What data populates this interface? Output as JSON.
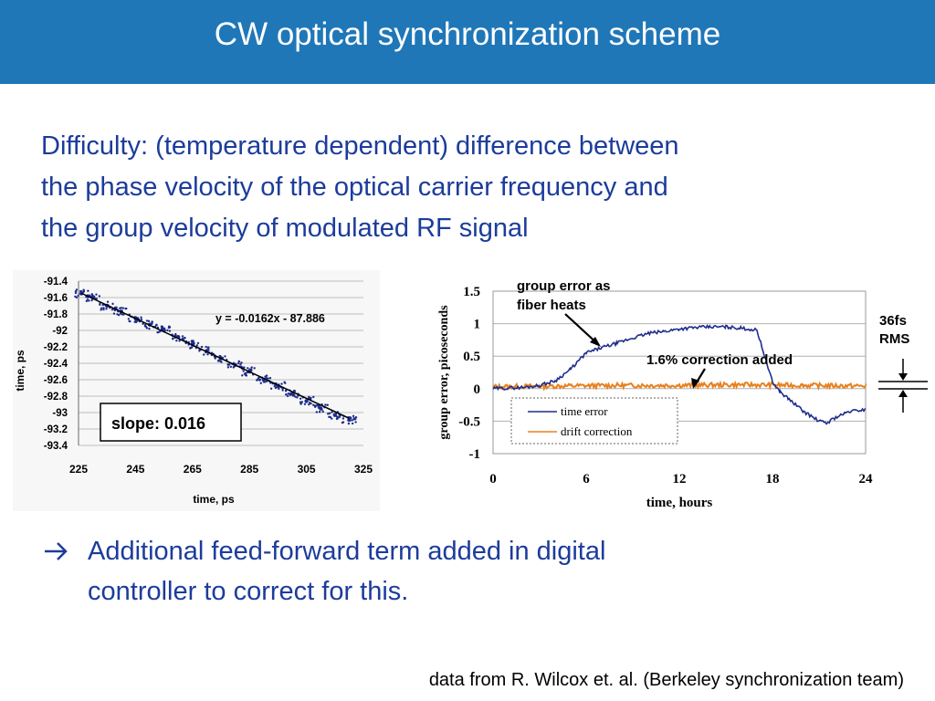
{
  "slide": {
    "title": "CW optical synchronization scheme",
    "intro_lines": [
      "Difficulty: (temperature dependent) difference between",
      "the phase velocity of the optical carrier frequency and",
      "the group velocity of modulated RF signal"
    ],
    "arrow_icon": "right-arrow-icon",
    "conclusion_lines": [
      "Additional feed-forward term added in digital",
      "controller to correct for this."
    ],
    "footer": "data from R. Wilcox et. al. (Berkeley synchronization team)",
    "colors": {
      "header": "#1f77b8",
      "text": "#1c3c9c",
      "series_blue": "#1f2d8c",
      "series_orange": "#e8801e"
    }
  },
  "chart_data": [
    {
      "type": "scatter",
      "xlabel": "time, ps",
      "ylabel": "time, ps",
      "xlim": [
        225,
        325
      ],
      "ylim": [
        -93.4,
        -91.4
      ],
      "xticks": [
        "225",
        "245",
        "265",
        "285",
        "305",
        "325"
      ],
      "yticks": [
        "-91.4",
        "-91.6",
        "-91.8",
        "-92",
        "-92.2",
        "-92.4",
        "-92.6",
        "-92.8",
        "-93",
        "-93.2",
        "-93.4"
      ],
      "grid": "horizontal",
      "equation": "y = -0.0162x - 87.886",
      "slope_label": "slope: 0.016",
      "trendline": {
        "slope": -0.0162,
        "intercept": -87.886,
        "x_range": [
          226,
          320
        ]
      },
      "series": [
        {
          "x": [
            226,
            230,
            235,
            240,
            245,
            250,
            255,
            260,
            265,
            270,
            275,
            280,
            285,
            290,
            295,
            300,
            305,
            310,
            315,
            320
          ],
          "y": [
            -91.55,
            -91.6,
            -91.7,
            -91.77,
            -91.85,
            -91.93,
            -92.0,
            -92.08,
            -92.17,
            -92.25,
            -92.34,
            -92.42,
            -92.5,
            -92.6,
            -92.68,
            -92.77,
            -92.86,
            -92.95,
            -93.03,
            -93.09
          ]
        }
      ]
    },
    {
      "type": "line",
      "xlabel": "time, hours",
      "ylabel": "group error, picoseconds",
      "xlim": [
        0,
        24
      ],
      "ylim": [
        -1,
        1.5
      ],
      "xticks": [
        "0",
        "6",
        "12",
        "18",
        "24"
      ],
      "yticks": [
        "1.5",
        "1",
        "0.5",
        "0",
        "-0.5",
        "-1"
      ],
      "grid": "horizontal",
      "annotations": [
        "group error as",
        "fiber heats",
        "1.6% correction added",
        "36fs",
        "RMS"
      ],
      "series": [
        {
          "name": "time error",
          "x": [
            0,
            2,
            3,
            4,
            5,
            6,
            7,
            8,
            9,
            10,
            11,
            12,
            13,
            14,
            15,
            16,
            17,
            18,
            18.5,
            19,
            20,
            21,
            21.5,
            22,
            23,
            24
          ],
          "y": [
            0,
            0.02,
            0.05,
            0.12,
            0.3,
            0.55,
            0.63,
            0.7,
            0.78,
            0.85,
            0.88,
            0.92,
            0.94,
            0.95,
            0.95,
            0.93,
            0.9,
            0.1,
            -0.05,
            -0.15,
            -0.35,
            -0.5,
            -0.53,
            -0.45,
            -0.35,
            -0.32
          ]
        },
        {
          "name": "drift correction",
          "x": [
            0,
            4,
            8,
            12,
            16,
            20,
            24
          ],
          "y": [
            0.03,
            0.04,
            0.05,
            0.05,
            0.06,
            0.05,
            0.04
          ]
        }
      ]
    }
  ]
}
